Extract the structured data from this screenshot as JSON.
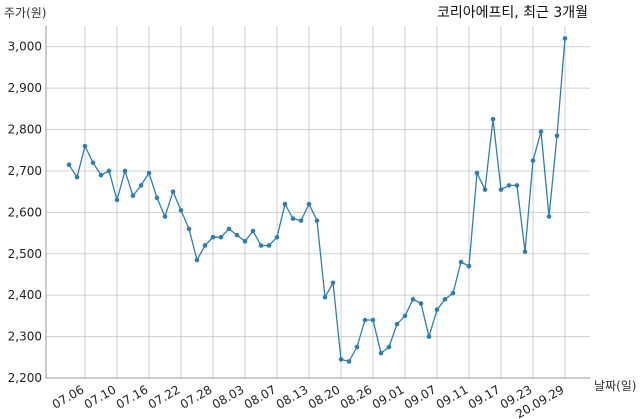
{
  "chart_data": {
    "type": "line",
    "title": "코리아에프티, 최근 3개월",
    "ylabel": "주가(원)",
    "xlabel": "날짜(일)",
    "ylim": [
      2200,
      3050
    ],
    "yticks": [
      2200,
      2300,
      2400,
      2500,
      2600,
      2700,
      2800,
      2900,
      3000
    ],
    "ytick_labels": [
      "2,200",
      "2,300",
      "2,400",
      "2,500",
      "2,600",
      "2,700",
      "2,800",
      "2,900",
      "3,000"
    ],
    "grid": true,
    "line_color": "#2e7fb1",
    "xtick_labels": [
      "07.06",
      "07.10",
      "07.16",
      "07.22",
      "07.28",
      "08.03",
      "08.07",
      "08.13",
      "08.20",
      "08.26",
      "09.01",
      "09.07",
      "09.11",
      "09.17",
      "09.23",
      "20.09.29"
    ],
    "xtick_index": [
      2,
      6,
      10,
      14,
      18,
      22,
      26,
      30,
      34,
      38,
      42,
      46,
      50,
      54,
      58,
      62
    ],
    "series": [
      {
        "values": [
          2715,
          2685,
          2760,
          2720,
          2690,
          2700,
          2630,
          2700,
          2640,
          2665,
          2695,
          2635,
          2590,
          2650,
          2605,
          2560,
          2485,
          2520,
          2540,
          2540,
          2560,
          2545,
          2530,
          2555,
          2520,
          2520,
          2540,
          2620,
          2585,
          2580,
          2620,
          2580,
          2395,
          2430,
          2245,
          2240,
          2275,
          2340,
          2340,
          2260,
          2275,
          2330,
          2350,
          2390,
          2380,
          2300,
          2365,
          2390,
          2405,
          2480,
          2470,
          2695,
          2655,
          2825,
          2655,
          2665,
          2665,
          2505,
          2725,
          2795,
          2590,
          2785,
          3020
        ]
      }
    ]
  }
}
